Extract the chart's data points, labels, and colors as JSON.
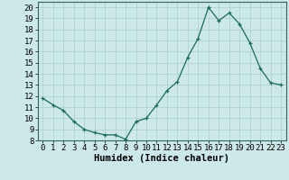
{
  "x": [
    0,
    1,
    2,
    3,
    4,
    5,
    6,
    7,
    8,
    9,
    10,
    11,
    12,
    13,
    14,
    15,
    16,
    17,
    18,
    19,
    20,
    21,
    22,
    23
  ],
  "y": [
    11.8,
    11.2,
    10.7,
    9.7,
    9.0,
    8.7,
    8.5,
    8.5,
    8.1,
    9.7,
    10.0,
    11.2,
    12.5,
    13.3,
    15.5,
    17.2,
    20.0,
    18.8,
    19.5,
    18.5,
    16.8,
    14.5,
    13.2,
    13.0
  ],
  "xlabel": "Humidex (Indice chaleur)",
  "xlim": [
    -0.5,
    23.5
  ],
  "ylim": [
    8,
    20.5
  ],
  "yticks": [
    8,
    9,
    10,
    11,
    12,
    13,
    14,
    15,
    16,
    17,
    18,
    19,
    20
  ],
  "xticks": [
    0,
    1,
    2,
    3,
    4,
    5,
    6,
    7,
    8,
    9,
    10,
    11,
    12,
    13,
    14,
    15,
    16,
    17,
    18,
    19,
    20,
    21,
    22,
    23
  ],
  "line_color": "#1a6b5a",
  "marker": "+",
  "bg_color": "#cce8e8",
  "grid_color": "#aacece",
  "label_fontsize": 7.5,
  "tick_fontsize": 6.5
}
